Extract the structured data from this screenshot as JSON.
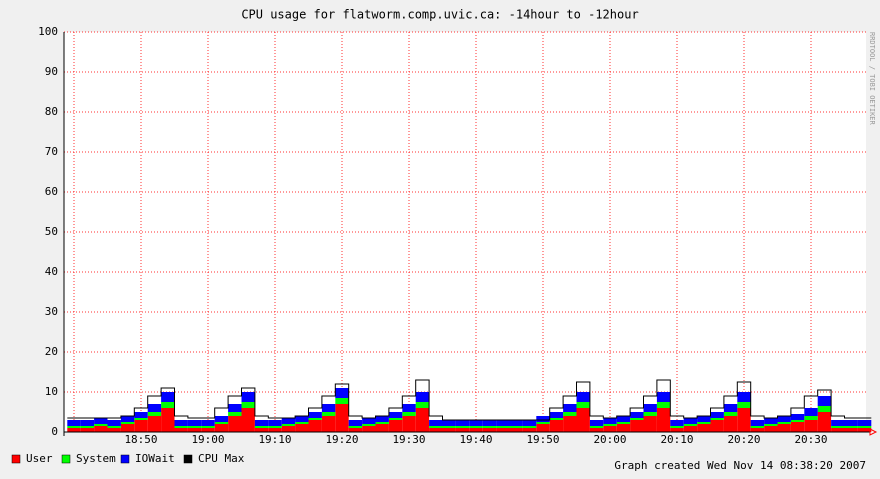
{
  "chart_data": {
    "type": "area",
    "title": "CPU usage for flatworm.comp.uvic.ca: -14hour to -12hour",
    "categories": [
      null,
      null,
      null,
      null,
      null,
      "18:50",
      null,
      null,
      null,
      null,
      "19:00",
      null,
      null,
      null,
      null,
      "19:10",
      null,
      null,
      null,
      null,
      "19:20",
      null,
      null,
      null,
      null,
      "19:30",
      null,
      null,
      null,
      null,
      "19:40",
      null,
      null,
      null,
      null,
      "19:50",
      null,
      null,
      null,
      null,
      "20:00",
      null,
      null,
      null,
      null,
      "20:10",
      null,
      null,
      null,
      null,
      "20:20",
      null,
      null,
      null,
      null,
      "20:30",
      null,
      null,
      null,
      null
    ],
    "series": [
      {
        "name": "User",
        "color": "#ff0000",
        "stacked": true,
        "values": [
          1,
          1,
          1.5,
          1,
          2,
          3,
          4,
          6,
          1,
          1,
          1,
          2,
          4,
          6,
          1,
          1,
          1.5,
          2,
          3,
          4,
          7,
          1,
          1.5,
          2,
          3,
          4,
          6,
          1,
          1,
          1,
          1,
          1,
          1,
          1,
          1,
          2,
          3,
          4,
          6,
          1,
          1.5,
          2,
          3,
          4,
          6,
          1,
          1.5,
          2,
          3,
          4,
          6,
          1,
          1.5,
          2,
          2.5,
          3,
          5,
          1,
          1,
          1
        ]
      },
      {
        "name": "System",
        "color": "#00ff00",
        "stacked": true,
        "values": [
          0.5,
          0.5,
          0.5,
          0.5,
          0.5,
          0.5,
          1,
          1.5,
          0.5,
          0.5,
          0.5,
          0.5,
          1,
          1.5,
          0.5,
          0.5,
          0.5,
          0.5,
          0.5,
          1,
          1.5,
          0.5,
          0.5,
          0.5,
          0.5,
          1,
          1.5,
          0.5,
          0.5,
          0.5,
          0.5,
          0.5,
          0.5,
          0.5,
          0.5,
          0.5,
          0.5,
          1,
          1.5,
          0.5,
          0.5,
          0.5,
          0.5,
          1,
          1.5,
          0.5,
          0.5,
          0.5,
          0.5,
          1,
          1.5,
          0.5,
          0.5,
          0.5,
          0.5,
          1,
          1.5,
          0.5,
          0.5,
          0.5
        ]
      },
      {
        "name": "IOWait",
        "color": "#0000ff",
        "stacked": true,
        "values": [
          1.5,
          1.5,
          1.5,
          1.5,
          1.5,
          1.5,
          2,
          2.5,
          1.5,
          1.5,
          1.5,
          1.5,
          2,
          2.5,
          1.5,
          1.5,
          1.5,
          1.5,
          1.5,
          2,
          2.5,
          1.5,
          1.5,
          1.5,
          1.5,
          2,
          2.5,
          1.5,
          1.5,
          1.5,
          1.5,
          1.5,
          1.5,
          1.5,
          1.5,
          1.5,
          1.5,
          2,
          2.5,
          1.5,
          1.5,
          1.5,
          1.5,
          2,
          2.5,
          1.5,
          1.5,
          1.5,
          1.5,
          2,
          2.5,
          1.5,
          1.5,
          1.5,
          1.5,
          2,
          2.5,
          1.5,
          1.5,
          1.5
        ]
      },
      {
        "name": "CPU Max",
        "color": "#000000",
        "stacked": false,
        "values": [
          3.5,
          3.5,
          3.5,
          3.5,
          4,
          6,
          9,
          11,
          4,
          3.5,
          3.5,
          6,
          9,
          11,
          4,
          3.5,
          3.5,
          4,
          6,
          9,
          12,
          4,
          3.5,
          4,
          6,
          9,
          13,
          4,
          3,
          3,
          3,
          3,
          3,
          3,
          3,
          3,
          6,
          9,
          12.5,
          4,
          3.5,
          4,
          6,
          9,
          13,
          4,
          3.5,
          4,
          6,
          9,
          12.5,
          4,
          3.5,
          4,
          6,
          9,
          10.5,
          4,
          3.5,
          3.5
        ]
      }
    ],
    "ylim": [
      0,
      100
    ],
    "yticks": [
      0,
      10,
      20,
      30,
      40,
      50,
      60,
      70,
      80,
      90,
      100
    ],
    "grid": true
  },
  "footer": "Graph created Wed Nov 14 08:38:20 2007",
  "watermark": "RRDTOOL / TOBI OETIKER"
}
